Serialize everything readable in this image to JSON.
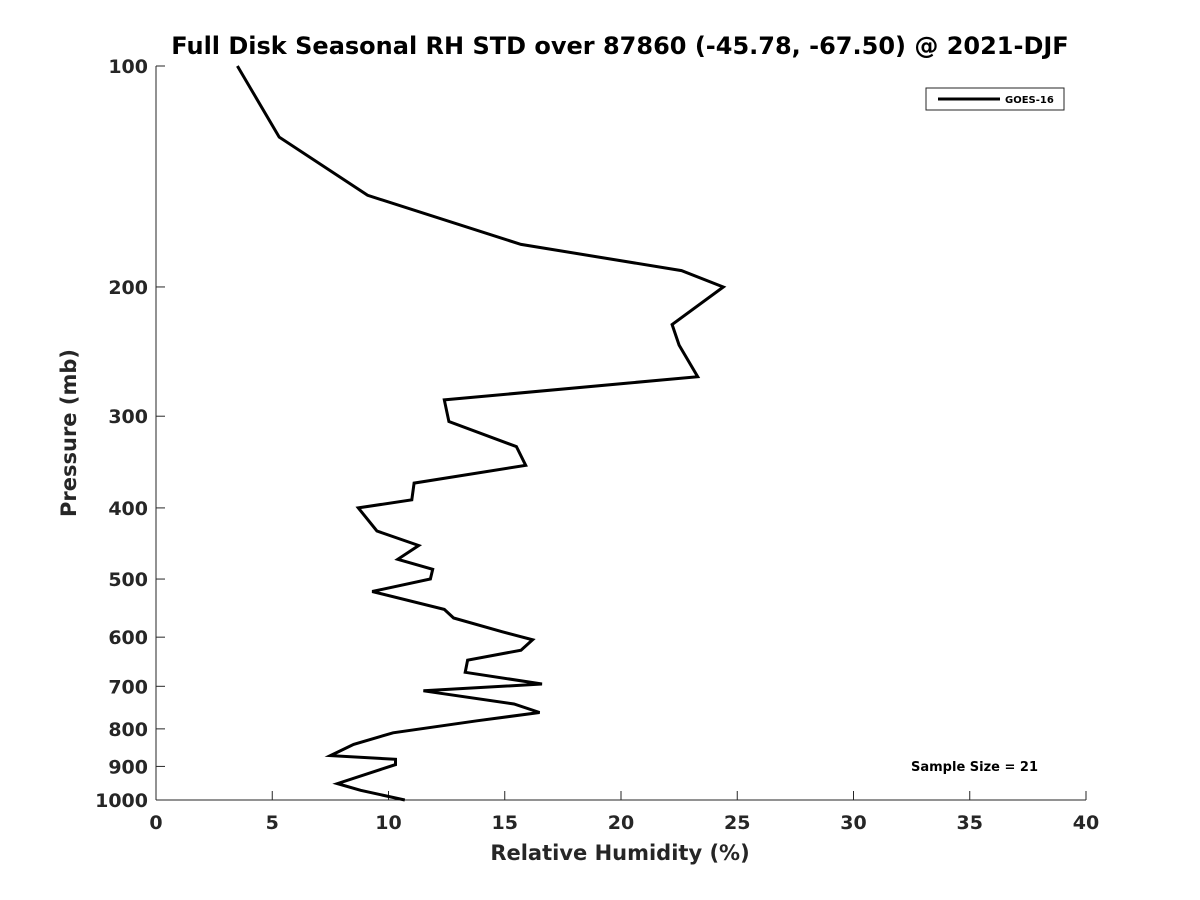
{
  "chart_data": {
    "type": "line",
    "title": "Full Disk Seasonal RH STD over 87860 (-45.78, -67.50) @ 2021-DJF",
    "xlabel": "Relative Humidity (%)",
    "ylabel": "Pressure (mb)",
    "xlim": [
      0,
      40
    ],
    "ylim": [
      100,
      1000
    ],
    "y_scale": "log",
    "y_reversed": true,
    "x_ticks": [
      "0",
      "5",
      "10",
      "15",
      "20",
      "25",
      "30",
      "35",
      "40"
    ],
    "y_ticks": [
      "100",
      "200",
      "300",
      "400",
      "500",
      "600",
      "700",
      "800",
      "900",
      "1000"
    ],
    "grid": false,
    "legend_position": "top-right",
    "annotation": "Sample Size = 21",
    "series": [
      {
        "name": "GOES-16",
        "color": "#000000",
        "points": [
          [
            3.5,
            100
          ],
          [
            5.3,
            125
          ],
          [
            9.1,
            150
          ],
          [
            15.7,
            175
          ],
          [
            22.6,
            190
          ],
          [
            24.4,
            200
          ],
          [
            22.2,
            225
          ],
          [
            22.5,
            240
          ],
          [
            23.3,
            265
          ],
          [
            12.4,
            285
          ],
          [
            12.6,
            305
          ],
          [
            15.5,
            330
          ],
          [
            15.9,
            350
          ],
          [
            11.1,
            370
          ],
          [
            11.0,
            390
          ],
          [
            8.7,
            400
          ],
          [
            9.5,
            430
          ],
          [
            11.3,
            450
          ],
          [
            10.4,
            470
          ],
          [
            11.9,
            485
          ],
          [
            11.8,
            500
          ],
          [
            9.3,
            520
          ],
          [
            12.4,
            550
          ],
          [
            12.8,
            565
          ],
          [
            14.9,
            590
          ],
          [
            16.2,
            605
          ],
          [
            15.7,
            625
          ],
          [
            13.4,
            645
          ],
          [
            13.3,
            670
          ],
          [
            16.6,
            695
          ],
          [
            11.5,
            710
          ],
          [
            15.4,
            740
          ],
          [
            16.5,
            760
          ],
          [
            13.8,
            780
          ],
          [
            10.2,
            810
          ],
          [
            8.5,
            840
          ],
          [
            7.5,
            870
          ],
          [
            10.3,
            880
          ],
          [
            10.3,
            895
          ],
          [
            9.6,
            910
          ],
          [
            7.8,
            950
          ],
          [
            8.8,
            970
          ],
          [
            10.7,
            1000
          ]
        ]
      }
    ]
  }
}
